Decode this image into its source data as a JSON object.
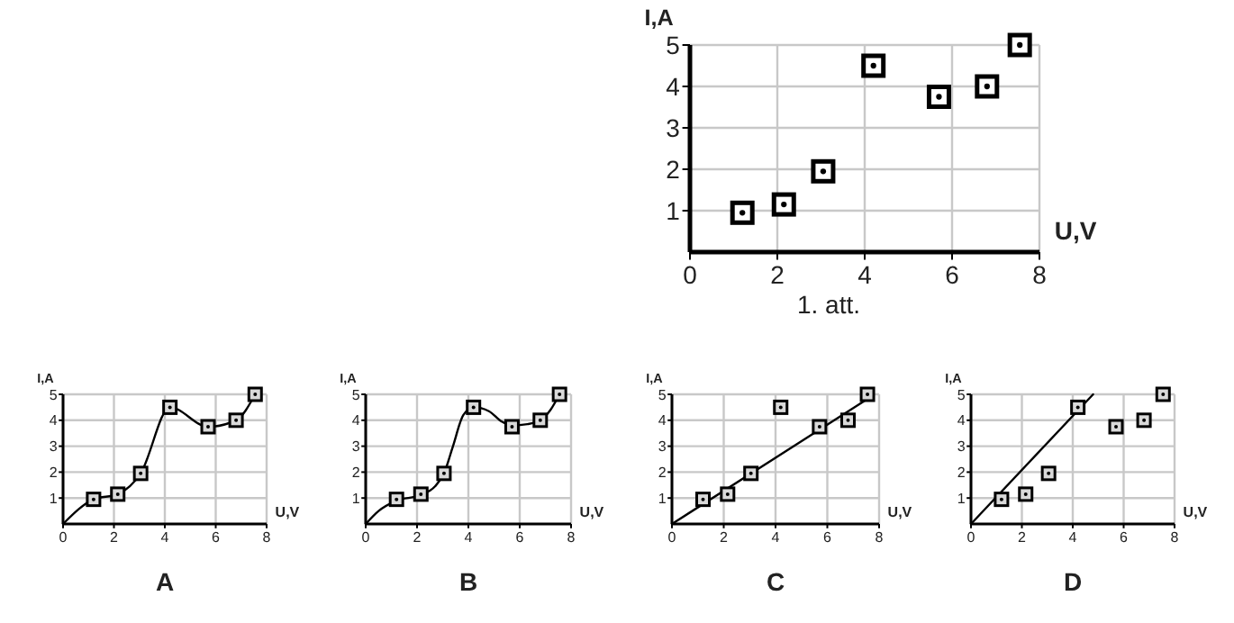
{
  "chart_data": [
    {
      "type": "scatter",
      "xlabel": "U,V",
      "ylabel": "I,A",
      "annotations": [
        "1. att."
      ],
      "x": [
        1.2,
        2.15,
        3.05,
        4.2,
        5.7,
        6.8,
        7.55
      ],
      "series": [
        {
          "color": "#000000",
          "values": [
            0.95,
            1.15,
            1.95,
            4.5,
            3.75,
            4.0,
            5.0
          ]
        }
      ],
      "xlim": [
        0,
        8
      ],
      "ylim": [
        0,
        5
      ],
      "xticks": [
        0,
        2,
        4,
        6,
        8
      ],
      "yticks": [
        1,
        2,
        3,
        4,
        5
      ],
      "grid": true,
      "marker": "square"
    },
    {
      "type": "scatter",
      "xlabel": "U,V",
      "ylabel": "I,A",
      "annotations": [
        "A"
      ],
      "x": [
        1.2,
        2.15,
        3.05,
        4.2,
        5.7,
        6.8,
        7.55
      ],
      "series": [
        {
          "type": "line",
          "color": "#000000",
          "marker": "none",
          "x": [
            0,
            1.2,
            2.15,
            3.05,
            4.2,
            5.7,
            6.8,
            7.55
          ],
          "values": [
            0,
            0.95,
            1.15,
            1.95,
            4.5,
            3.75,
            4.0,
            5.0
          ]
        },
        {
          "color": "#000000",
          "values": [
            0.95,
            1.15,
            1.95,
            4.5,
            3.75,
            4.0,
            5.0
          ]
        }
      ],
      "xlim": [
        0,
        8
      ],
      "ylim": [
        0,
        5
      ],
      "xticks": [
        0,
        2,
        4,
        6,
        8
      ],
      "yticks": [
        1,
        2,
        3,
        4,
        5
      ],
      "grid": true,
      "marker": "square"
    },
    {
      "type": "scatter",
      "xlabel": "U,V",
      "ylabel": "I,A",
      "annotations": [
        "B"
      ],
      "x": [
        1.2,
        2.15,
        3.05,
        4.2,
        5.7,
        6.8,
        7.55
      ],
      "series": [
        {
          "type": "line",
          "color": "#000000",
          "marker": "none",
          "x": [
            0,
            0.5,
            1.2,
            2.15,
            2.7,
            3.05,
            3.4,
            3.8,
            4.2,
            4.8,
            5.3,
            5.7,
            6.3,
            6.8,
            7.2,
            7.55
          ],
          "values": [
            0,
            0.5,
            0.9,
            1.12,
            1.45,
            1.95,
            3.0,
            4.2,
            4.5,
            4.35,
            3.95,
            3.8,
            3.85,
            4.0,
            4.4,
            5.0
          ]
        },
        {
          "color": "#000000",
          "values": [
            0.95,
            1.15,
            1.95,
            4.5,
            3.75,
            4.0,
            5.0
          ]
        }
      ],
      "xlim": [
        0,
        8
      ],
      "ylim": [
        0,
        5
      ],
      "xticks": [
        0,
        2,
        4,
        6,
        8
      ],
      "yticks": [
        1,
        2,
        3,
        4,
        5
      ],
      "grid": true,
      "marker": "square"
    },
    {
      "type": "scatter",
      "xlabel": "U,V",
      "ylabel": "I,A",
      "annotations": [
        "C"
      ],
      "x": [
        1.2,
        2.15,
        3.05,
        4.2,
        5.7,
        6.8,
        7.55
      ],
      "series": [
        {
          "type": "line",
          "color": "#000000",
          "marker": "none",
          "x": [
            0,
            7.6
          ],
          "values": [
            0,
            4.85
          ]
        },
        {
          "color": "#000000",
          "values": [
            0.95,
            1.15,
            1.95,
            4.5,
            3.75,
            4.0,
            5.0
          ]
        }
      ],
      "xlim": [
        0,
        8
      ],
      "ylim": [
        0,
        5
      ],
      "xticks": [
        0,
        2,
        4,
        6,
        8
      ],
      "yticks": [
        1,
        2,
        3,
        4,
        5
      ],
      "grid": true,
      "marker": "square"
    },
    {
      "type": "scatter",
      "xlabel": "U,V",
      "ylabel": "I,A",
      "annotations": [
        "D"
      ],
      "x": [
        1.2,
        2.15,
        3.05,
        4.2,
        5.7,
        6.8,
        7.55
      ],
      "series": [
        {
          "type": "line",
          "color": "#000000",
          "marker": "none",
          "x": [
            0,
            4.8
          ],
          "values": [
            0,
            5.0
          ]
        },
        {
          "color": "#000000",
          "values": [
            0.95,
            1.15,
            1.95,
            4.5,
            3.75,
            4.0,
            5.0
          ]
        }
      ],
      "xlim": [
        0,
        8
      ],
      "ylim": [
        0,
        5
      ],
      "xticks": [
        0,
        2,
        4,
        6,
        8
      ],
      "yticks": [
        1,
        2,
        3,
        4,
        5
      ],
      "grid": true,
      "marker": "square"
    }
  ]
}
